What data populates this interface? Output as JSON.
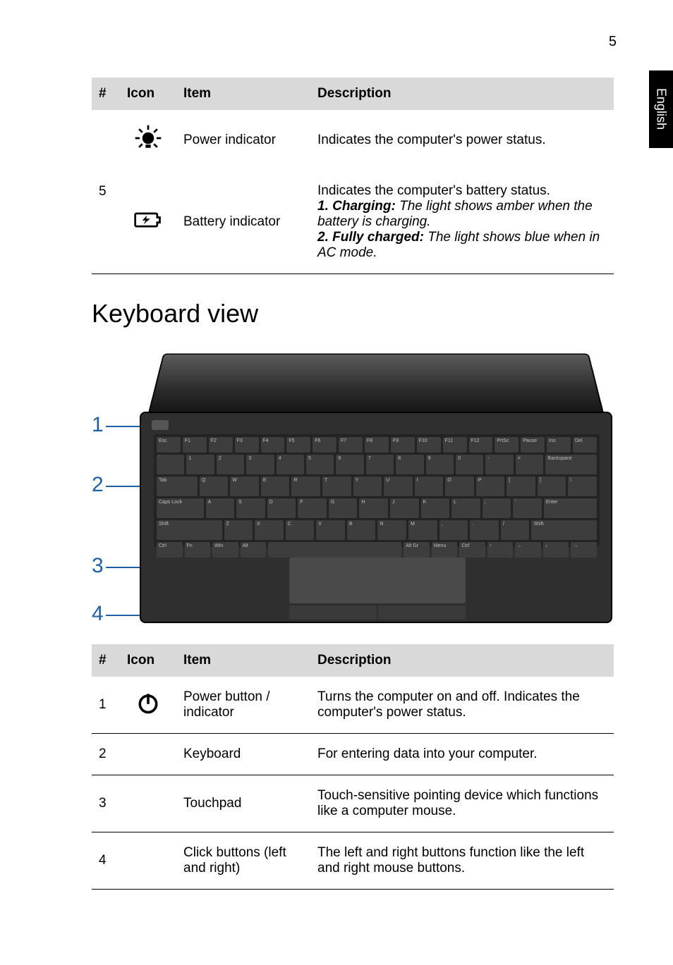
{
  "page_number": "5",
  "language_tab": "English",
  "colors": {
    "header_bg": "#d9d9d9",
    "text": "#000000",
    "callout": "#2060a0",
    "laptop_body": "#2f2f2f",
    "key": "#3d3d3d",
    "touchpad": "#4a4a4a"
  },
  "table1": {
    "headers": {
      "num": "#",
      "icon": "Icon",
      "item": "Item",
      "desc": "Description"
    },
    "shared_num": "5",
    "rows": [
      {
        "item": "Power indicator",
        "desc": "Indicates the computer's power status."
      },
      {
        "item": "Battery indicator",
        "desc_parts": {
          "p1": "Indicates the computer's battery status.",
          "b1": "1. Charging:",
          "i1": " The light shows amber when the battery is charging.",
          "b2": "2. Fully charged:",
          "i2": " The light shows blue when in AC mode."
        }
      }
    ]
  },
  "heading": "Keyboard view",
  "keyboard": {
    "row0": [
      "Esc",
      "F1",
      "F2",
      "F3",
      "F4",
      "F5",
      "F6",
      "F7",
      "F8",
      "F9",
      "F10",
      "F11",
      "F12",
      "PrtSc",
      "Pause",
      "Ins",
      "Del"
    ],
    "row1": [
      "`",
      "1",
      "2",
      "3",
      "4",
      "5",
      "6",
      "7",
      "8",
      "9",
      "0",
      "-",
      "=",
      "Backspace"
    ],
    "row2": [
      "Tab",
      "Q",
      "W",
      "E",
      "R",
      "T",
      "Y",
      "U",
      "I",
      "O",
      "P",
      "[",
      "]",
      "\\"
    ],
    "row3": [
      "Caps Lock",
      "A",
      "S",
      "D",
      "F",
      "G",
      "H",
      "J",
      "K",
      "L",
      ";",
      "'",
      "Enter"
    ],
    "row4": [
      "Shift",
      "Z",
      "X",
      "C",
      "V",
      "B",
      "N",
      "M",
      ",",
      ".",
      "/",
      "Shift"
    ],
    "row5": [
      "Ctrl",
      "Fn",
      "Win",
      "Alt",
      "",
      "Alt Gr",
      "Menu",
      "Ctrl",
      "↑",
      "←",
      "↓",
      "→"
    ]
  },
  "callouts": {
    "c1": "1",
    "c2": "2",
    "c3": "3",
    "c4": "4"
  },
  "table2": {
    "headers": {
      "num": "#",
      "icon": "Icon",
      "item": "Item",
      "desc": "Description"
    },
    "rows": [
      {
        "num": "1",
        "item": "Power button / indicator",
        "desc": "Turns the computer on and off. Indicates the computer's power status."
      },
      {
        "num": "2",
        "item": "Keyboard",
        "desc": "For entering data into your computer."
      },
      {
        "num": "3",
        "item": "Touchpad",
        "desc": "Touch-sensitive pointing device which functions like a computer mouse."
      },
      {
        "num": "4",
        "item": "Click buttons (left and right)",
        "desc": "The left and right buttons function like the left and right mouse buttons."
      }
    ]
  }
}
